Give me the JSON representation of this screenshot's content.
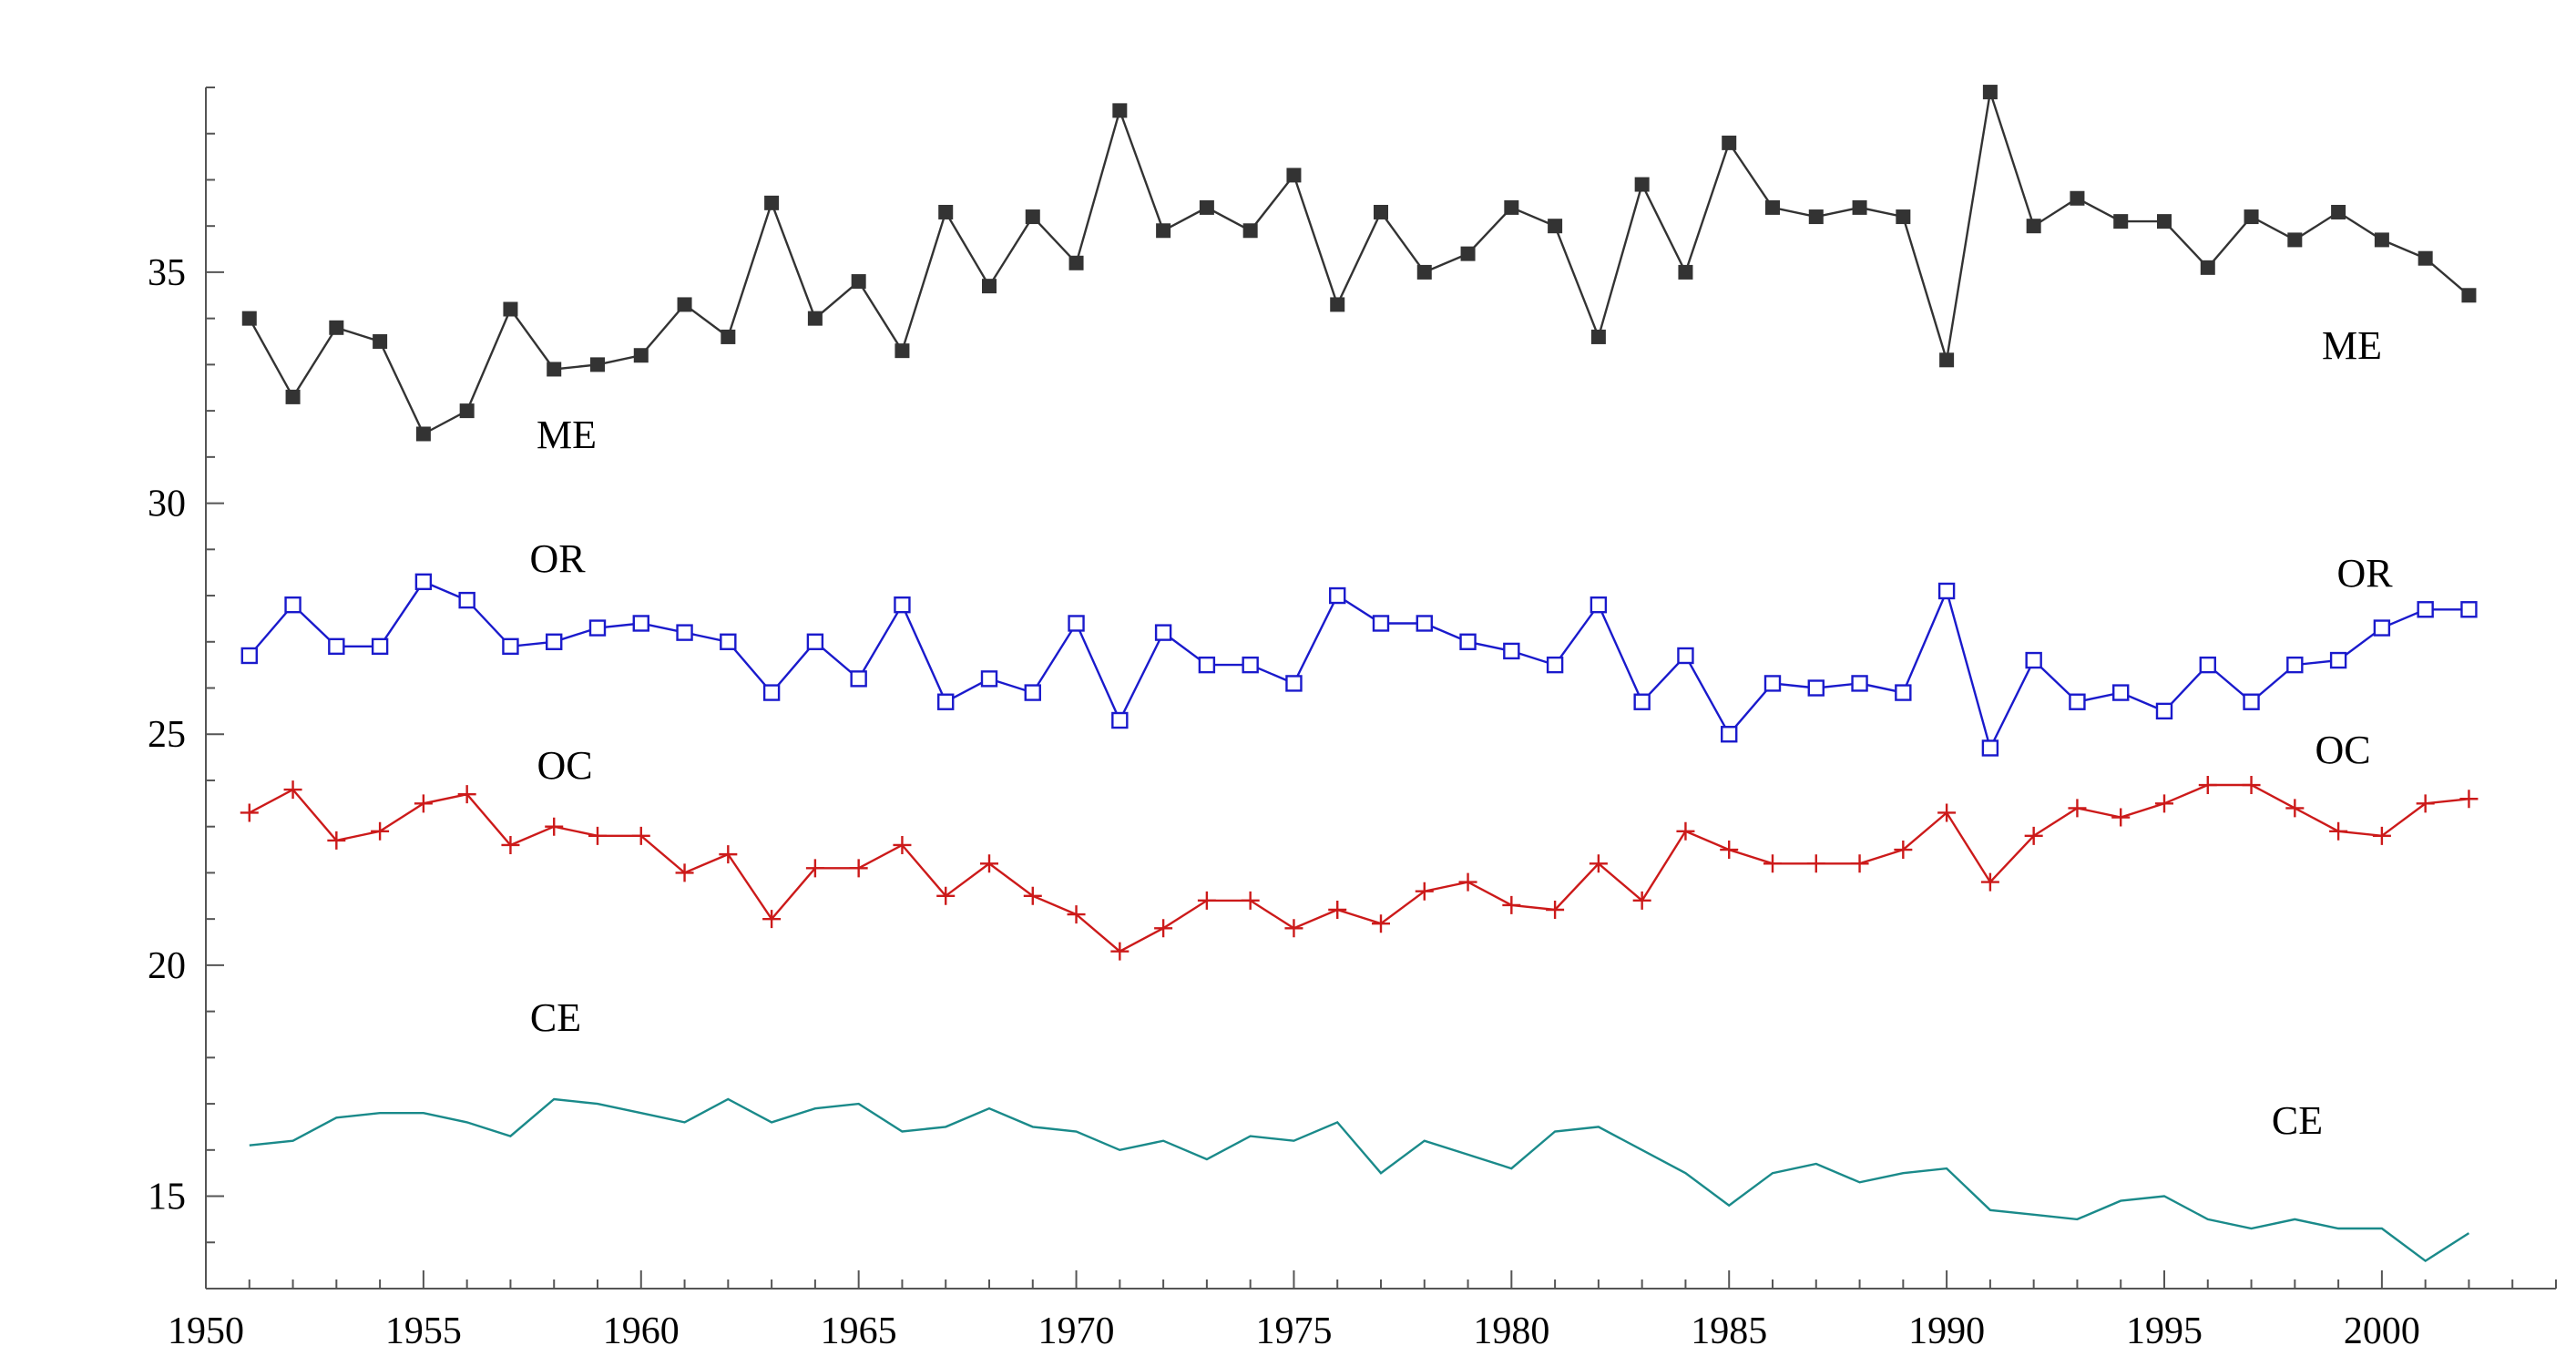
{
  "chart_data": {
    "type": "line",
    "title": "",
    "xlabel": "",
    "ylabel": "",
    "xlim": [
      1950,
      2004
    ],
    "ylim": [
      13.0,
      39.0
    ],
    "grid": false,
    "legend": "none",
    "x_ticks": [
      1950,
      1955,
      1960,
      1965,
      1970,
      1975,
      1980,
      1985,
      1990,
      1995,
      2000
    ],
    "x_tick_labels": [
      "1950",
      "1955",
      "1960",
      "1965",
      "1970",
      "1975",
      "1980",
      "1985",
      "1990",
      "1995",
      "2000"
    ],
    "y_ticks": [
      15,
      20,
      25,
      30,
      35
    ],
    "y_tick_labels": [
      "15",
      "20",
      "25",
      "30",
      "35"
    ],
    "x": [
      1951,
      1952,
      1953,
      1954,
      1955,
      1956,
      1957,
      1958,
      1959,
      1960,
      1961,
      1962,
      1963,
      1964,
      1965,
      1966,
      1967,
      1968,
      1969,
      1970,
      1971,
      1972,
      1973,
      1974,
      1975,
      1976,
      1977,
      1978,
      1979,
      1980,
      1981,
      1982,
      1983,
      1984,
      1985,
      1986,
      1987,
      1988,
      1989,
      1990,
      1991,
      1992,
      1993,
      1994,
      1995,
      1996,
      1997,
      1998,
      1999,
      2000,
      2001,
      2002
    ],
    "series": [
      {
        "key": "me",
        "color": "#333333",
        "marker": "filled-square",
        "labels": [
          "ME",
          "ME"
        ],
        "values": [
          34.0,
          32.3,
          33.8,
          33.5,
          31.5,
          32.0,
          34.2,
          32.9,
          33.0,
          33.2,
          34.3,
          33.6,
          36.5,
          34.0,
          34.8,
          33.3,
          36.3,
          34.7,
          36.2,
          35.2,
          38.5,
          35.9,
          36.4,
          35.9,
          37.1,
          34.3,
          36.3,
          35.0,
          35.4,
          36.4,
          36.0,
          33.6,
          36.9,
          35.0,
          37.8,
          36.4,
          36.2,
          36.4,
          36.2,
          33.1,
          38.9,
          36.0,
          36.6,
          36.1,
          36.1,
          35.1,
          36.2,
          35.7,
          36.3,
          35.7,
          35.3,
          34.5
        ]
      },
      {
        "key": "or",
        "color": "#1a1acc",
        "marker": "open-square",
        "labels": [
          "OR",
          "OR"
        ],
        "values": [
          26.7,
          27.8,
          26.9,
          26.9,
          28.3,
          27.9,
          26.9,
          27.0,
          27.3,
          27.4,
          27.2,
          27.0,
          25.9,
          27.0,
          26.2,
          27.8,
          25.7,
          26.2,
          25.9,
          27.4,
          25.3,
          27.2,
          26.5,
          26.5,
          26.1,
          28.0,
          27.4,
          27.4,
          27.0,
          26.8,
          26.5,
          27.8,
          25.7,
          26.7,
          25.0,
          26.1,
          26.0,
          26.1,
          25.9,
          28.1,
          24.7,
          26.6,
          25.7,
          25.9,
          25.5,
          26.5,
          25.7,
          26.5,
          26.6,
          27.3,
          27.7,
          27.7
        ]
      },
      {
        "key": "oc",
        "color": "#cc1a1a",
        "marker": "plus",
        "labels": [
          "OC",
          "OC"
        ],
        "values": [
          23.3,
          23.8,
          22.7,
          22.9,
          23.5,
          23.7,
          22.6,
          23.0,
          22.8,
          22.8,
          22.0,
          22.4,
          21.0,
          22.1,
          22.1,
          22.6,
          21.5,
          22.2,
          21.5,
          21.1,
          20.3,
          20.8,
          21.4,
          21.4,
          20.8,
          21.2,
          20.9,
          21.6,
          21.8,
          21.3,
          21.2,
          22.2,
          21.4,
          22.9,
          22.5,
          22.2,
          22.2,
          22.2,
          22.5,
          23.3,
          21.8,
          22.8,
          23.4,
          23.2,
          23.5,
          23.9,
          23.9,
          23.4,
          22.9,
          22.8,
          23.5,
          23.6
        ]
      },
      {
        "key": "ce",
        "color": "#1a8a8a",
        "marker": "none",
        "labels": [
          "CE",
          "CE"
        ],
        "values": [
          16.1,
          16.2,
          16.7,
          16.8,
          16.8,
          16.6,
          16.3,
          17.1,
          17.0,
          16.8,
          16.6,
          17.1,
          16.6,
          16.9,
          17.0,
          16.4,
          16.5,
          16.9,
          16.5,
          16.4,
          16.0,
          16.2,
          15.8,
          16.3,
          16.2,
          16.6,
          15.5,
          16.2,
          15.9,
          15.6,
          16.4,
          16.5,
          16.0,
          15.5,
          14.8,
          15.5,
          15.7,
          15.3,
          15.5,
          15.6,
          14.7,
          14.6,
          14.5,
          14.9,
          15.0,
          14.5,
          14.3,
          14.5,
          14.3,
          14.3,
          13.6,
          14.2
        ]
      }
    ]
  }
}
